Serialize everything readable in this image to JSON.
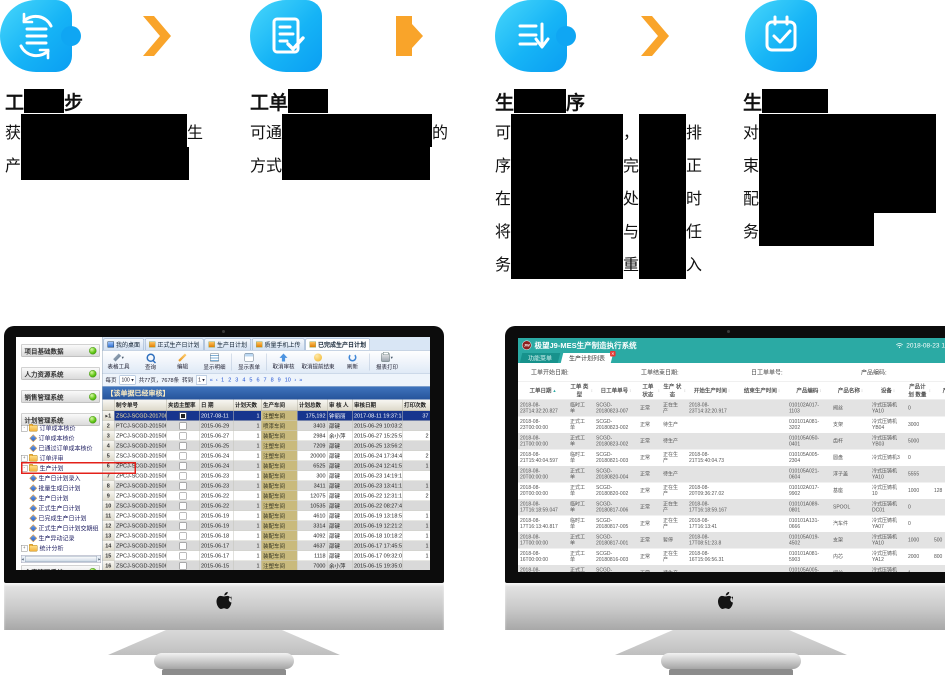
{
  "colors": {
    "badge_cyan_light": "#49d7fb",
    "badge_cyan_dark": "#0a9ef2",
    "arrow_orange": "#f9a42a",
    "mes_teal": "#2baaa4",
    "highlight_red": "#e3211a",
    "selected_row_navy": "#17358e",
    "workshop_tan": "#c9ba7d"
  },
  "steps": [
    {
      "icon": "sync-icon",
      "title": [
        {
          "t": "工"
        },
        {
          "g": 40
        },
        {
          "t": "步"
        }
      ],
      "lines": [
        [
          {
            "t": "获"
          },
          {
            "g": 166
          },
          {
            "t": "生"
          }
        ],
        [
          {
            "t": "产"
          },
          {
            "g": 168
          }
        ]
      ]
    },
    {
      "icon": "doc-check-icon",
      "title": [
        {
          "t": "工单"
        },
        {
          "g": 40
        }
      ],
      "lines": [
        [
          {
            "t": "可通"
          },
          {
            "g": 150
          },
          {
            "t": "的"
          }
        ],
        [
          {
            "t": "方式"
          },
          {
            "g": 148
          }
        ]
      ]
    },
    {
      "icon": "list-down-icon",
      "title": [
        {
          "t": "生"
        },
        {
          "g": 52
        },
        {
          "t": "序"
        }
      ],
      "lines": [
        [
          {
            "t": "可"
          },
          {
            "g": 112
          },
          {
            "t": "，"
          },
          {
            "g": 47
          },
          {
            "t": "排"
          }
        ],
        [
          {
            "t": "序"
          },
          {
            "g": 112
          },
          {
            "t": "完"
          },
          {
            "g": 47
          },
          {
            "t": "正"
          }
        ],
        [
          {
            "t": "在"
          },
          {
            "g": 112
          },
          {
            "t": "处"
          },
          {
            "g": 47
          },
          {
            "t": "时"
          }
        ],
        [
          {
            "t": "将"
          },
          {
            "g": 112
          },
          {
            "t": "与"
          },
          {
            "g": 47
          },
          {
            "t": "任"
          }
        ],
        [
          {
            "t": "务"
          },
          {
            "g": 112
          },
          {
            "t": "重"
          },
          {
            "g": 47
          },
          {
            "t": "入"
          }
        ]
      ]
    },
    {
      "icon": "calendar-check-icon",
      "title": [
        {
          "t": "生"
        },
        {
          "g": 66
        }
      ],
      "lines": [
        [
          {
            "t": "对"
          },
          {
            "g": 177
          }
        ],
        [
          {
            "t": "束"
          },
          {
            "g": 177
          }
        ],
        [
          {
            "t": "配"
          },
          {
            "g": 177
          }
        ],
        [
          {
            "t": "务"
          },
          {
            "g": 115
          }
        ]
      ]
    }
  ],
  "left_monitor": {
    "sidebar": {
      "panels": [
        "项目基础数据",
        "人力资源系统",
        "销售管理系统",
        "计划管理系统"
      ],
      "bottom_panel": "仓库管理系统",
      "tree": [
        {
          "label": "订单成本核价",
          "type": "folder",
          "exp": "-"
        },
        {
          "label": "订单成本核价",
          "type": "leaf"
        },
        {
          "label": "已通过订单成本核价",
          "type": "leaf"
        },
        {
          "label": "订单评审",
          "type": "folder",
          "exp": "+"
        },
        {
          "label": "生产计划",
          "type": "folder",
          "exp": "-",
          "highlight": true
        },
        {
          "label": "生产日计划录入",
          "type": "leaf"
        },
        {
          "label": "批量生成日计划",
          "type": "leaf"
        },
        {
          "label": "生产日计划",
          "type": "leaf"
        },
        {
          "label": "正式生产日计划",
          "type": "leaf"
        },
        {
          "label": "已完成生产日计划",
          "type": "leaf"
        },
        {
          "label": "正式生产日计划交期组",
          "type": "leaf"
        },
        {
          "label": "生产异动记录",
          "type": "leaf"
        },
        {
          "label": "统计分析",
          "type": "folder",
          "exp": "+"
        }
      ]
    },
    "tabs": [
      {
        "label": "我的桌面",
        "icon": "desktop-icon",
        "active": false
      },
      {
        "label": "正式生产日计划",
        "icon": "plan-icon",
        "active": false
      },
      {
        "label": "生产日计划",
        "icon": "plan-icon",
        "active": false
      },
      {
        "label": "质量手机上传",
        "icon": "plan-icon",
        "active": false
      },
      {
        "label": "已完成生产日计划",
        "icon": "plan-icon",
        "active": true
      }
    ],
    "toolbar": [
      {
        "label": "表格工具",
        "icon": "wrench-icon",
        "dd": true
      },
      {
        "label": "查询",
        "icon": "search-icon"
      },
      {
        "label": "编辑",
        "icon": "edit-icon"
      },
      {
        "label": "显示明细",
        "icon": "detail-grid-icon",
        "sep": true
      },
      {
        "label": "显示表单",
        "icon": "form-icon",
        "sep": true
      },
      {
        "label": "取消审核",
        "icon": "cancel-audit-icon"
      },
      {
        "label": "取消提前结束",
        "icon": "cancel-finish-icon"
      },
      {
        "label": "刷新",
        "icon": "refresh-icon",
        "sep": true
      },
      {
        "label": "报表打印",
        "icon": "printer-icon",
        "dd": true
      }
    ],
    "pager": {
      "per_label": "每页",
      "per": "100",
      "total": "共77页，7678条",
      "goto_label": "转到",
      "goto": "1",
      "first": "«",
      "prev": "‹",
      "next": "›",
      "last": "»",
      "pages": [
        "1",
        "2",
        "3",
        "4",
        "5",
        "6",
        "7",
        "8",
        "9",
        "10"
      ]
    },
    "section_title": "【该单据已经审核】",
    "columns": [
      "",
      "制令单号",
      "夹齿主塑率",
      "日  期",
      "计划天数",
      "生产车间",
      "计划总数",
      "审 核 人",
      "审核日期",
      "打印次数",
      "最"
    ],
    "rows": [
      {
        "no": "▸1",
        "order": "ZSCJ-SCGD-2017081101",
        "chk": true,
        "date": "2017-08-11",
        "days": "1",
        "shop": "注塑车间",
        "qty": "175,192",
        "aud": "钟丽丽",
        "adate": "2017-08-11 19:37:14",
        "prn": "37",
        "ext": "201"
      },
      {
        "no": "2",
        "order": "PTCJ-SCGD-2015062902",
        "chk": false,
        "date": "2015-06-29",
        "days": "1",
        "shop": "喷漆车间",
        "qty": "3403",
        "aud": "邵键",
        "adate": "2015-06-29 10:03:23",
        "prn": "",
        "ext": ""
      },
      {
        "no": "3",
        "order": "ZPCJ-SCGD-2015062701",
        "chk": false,
        "date": "2015-06-27",
        "days": "1",
        "shop": "装配车间",
        "qty": "2984",
        "aud": "余小萍",
        "adate": "2015-06-27 15:25:56",
        "prn": "2",
        "ext": "201"
      },
      {
        "no": "4",
        "order": "ZSCJ-SCGD-2015062501",
        "chk": false,
        "date": "2015-06-25",
        "days": "1",
        "shop": "注塑车间",
        "qty": "7209",
        "aud": "邵键",
        "adate": "2015-06-25 13:56:20",
        "prn": "",
        "ext": ""
      },
      {
        "no": "5",
        "order": "ZSCJ-SCGD-2015062402",
        "chk": false,
        "date": "2015-06-24",
        "days": "1",
        "shop": "注塑车间",
        "qty": "20000",
        "aud": "邵键",
        "adate": "2015-06-24 17:34:49",
        "prn": "2",
        "ext": "201"
      },
      {
        "no": "6",
        "order": "ZPCJ-SCGD-2015062401",
        "chk": false,
        "date": "2015-06-24",
        "days": "1",
        "shop": "装配车间",
        "qty": "6525",
        "aud": "邵键",
        "adate": "2015-06-24 12:41:59",
        "prn": "1",
        "ext": "201"
      },
      {
        "no": "7",
        "order": "ZPCJ-SCGD-2015062303",
        "chk": false,
        "date": "2015-06-23",
        "days": "1",
        "shop": "装配车间",
        "qty": "300",
        "aud": "邵键",
        "adate": "2015-06-23 14:19:10",
        "prn": "",
        "ext": ""
      },
      {
        "no": "8",
        "order": "ZPCJ-SCGD-2015062302",
        "chk": false,
        "date": "2015-06-23",
        "days": "1",
        "shop": "装配车间",
        "qty": "3411",
        "aud": "邵键",
        "adate": "2015-06-23 13:41:13",
        "prn": "1",
        "ext": "201"
      },
      {
        "no": "9",
        "order": "ZPCJ-SCGD-2015062201",
        "chk": false,
        "date": "2015-06-22",
        "days": "1",
        "shop": "装配车间",
        "qty": "12075",
        "aud": "邵键",
        "adate": "2015-06-22 12:31:15",
        "prn": "2",
        "ext": "201"
      },
      {
        "no": "10",
        "order": "ZSCJ-SCGD-2015062201",
        "chk": false,
        "date": "2015-06-22",
        "days": "1",
        "shop": "注塑车间",
        "qty": "10535",
        "aud": "邵键",
        "adate": "2015-06-22 08:27:40",
        "prn": "",
        "ext": ""
      },
      {
        "no": "11",
        "order": "ZPCJ-SCGD-2015061902",
        "chk": false,
        "date": "2015-06-19",
        "days": "1",
        "shop": "装配车间",
        "qty": "4610",
        "aud": "邵键",
        "adate": "2015-06-19 13:18:59",
        "prn": "1",
        "ext": "201"
      },
      {
        "no": "12",
        "order": "ZPCJ-SCGD-2015061901",
        "chk": false,
        "date": "2015-06-19",
        "days": "1",
        "shop": "装配车间",
        "qty": "3314",
        "aud": "邵键",
        "adate": "2015-06-19 12:21:25",
        "prn": "1",
        "ext": "201"
      },
      {
        "no": "13",
        "order": "ZPCJ-SCGD-2015061801",
        "chk": false,
        "date": "2015-06-18",
        "days": "1",
        "shop": "装配车间",
        "qty": "4092",
        "aud": "邵键",
        "adate": "2015-06-18 10:18:21",
        "prn": "1",
        "ext": "201"
      },
      {
        "no": "14",
        "order": "ZPCJ-SCGD-2015061703",
        "chk": false,
        "date": "2015-06-17",
        "days": "1",
        "shop": "装配车间",
        "qty": "4637",
        "aud": "邵键",
        "adate": "2015-06-17 17:45:50",
        "prn": "1",
        "ext": "201"
      },
      {
        "no": "15",
        "order": "ZPCJ-SCGD-2015061701",
        "chk": false,
        "date": "2015-06-17",
        "days": "1",
        "shop": "装配车间",
        "qty": "1118",
        "aud": "邵键",
        "adate": "2015-06-17 09:32:00",
        "prn": "1",
        "ext": "201"
      },
      {
        "no": "16",
        "order": "ZSCJ-SCGD-2015061504",
        "chk": false,
        "date": "2015-06-15",
        "days": "1",
        "shop": "注塑车间",
        "qty": "7000",
        "aud": "余小萍",
        "adate": "2015-06-15 19:35:01",
        "prn": "",
        "ext": ""
      },
      {
        "no": "17",
        "order": "ZPCJ-SCGD-2015061503",
        "chk": false,
        "date": "2015-06-15",
        "days": "1",
        "shop": "装配车间",
        "qty": "9362",
        "aud": "余小萍",
        "adate": "2015-06-15 15:33:14",
        "prn": "1",
        "ext": "201"
      }
    ]
  },
  "right_monitor": {
    "logo_text": "JW",
    "title": "极望J9-MES生产制造执行系统",
    "datetime": "2018-08-23 17:4",
    "tabs": {
      "menu": "功能菜单",
      "list": "生产计划列表",
      "close": "✕"
    },
    "filters": [
      "工单开始日期:",
      "工单结束日期:",
      "日工单单号:",
      "产品编码:"
    ],
    "columns": [
      "工单日期",
      "工单\n类型",
      "日工单单号",
      "工单\n状态",
      "生产\n状态",
      "开始生产时间",
      "结束生产时间",
      "产品编码",
      "产品名称",
      "设备",
      "产品计划\n数量",
      "产"
    ],
    "rows": [
      {
        "c": [
          "2018-08-\n23T14:32:20.827",
          "临时工\n单",
          "SCGD-\n20180823-007",
          "正常",
          "正在生\n产",
          "2018-08-\n23T14:32:20.917",
          "",
          "010102A017-\n1103",
          "阀丝",
          "冷式压铸机\nYA10",
          "0",
          ""
        ]
      },
      {
        "c": [
          "2018-08-\n23T00:00:00",
          "正式工\n单",
          "SCGD-\n20180823-002",
          "正常",
          "待生产",
          "",
          "",
          "010101A081-\n3202",
          "支架",
          "冷式压铸机\nYB04",
          "3000",
          ""
        ]
      },
      {
        "c": [
          "2018-08-\n21T00:00:00",
          "正式工\n单",
          "SCGD-\n20180823-002",
          "正常",
          "待生产",
          "",
          "",
          "010105A050-\n0401",
          "齿杆",
          "冷式压铸机\nYB03",
          "5000",
          ""
        ]
      },
      {
        "c": [
          "2018-08-\n21T15:40:04.597",
          "临时工\n单",
          "SCGD-\n20180821-003",
          "正常",
          "正在生\n产",
          "2018-08-\n21T15:40:04.73",
          "",
          "010105A005-\n2304",
          "圆盘",
          "冷式压铸机3",
          "0",
          ""
        ]
      },
      {
        "c": [
          "2018-08-\n20T00:00:00",
          "正式工\n单",
          "SCGD-\n20180820-004",
          "正常",
          "待生产",
          "",
          "",
          "010105A021-\n0604",
          "浮子盖",
          "冷式压铸机\nYA10",
          "5555",
          ""
        ]
      },
      {
        "c": [
          "2018-08-\n20T00:00:00",
          "正式工\n单",
          "SCGD-\n20180820-002",
          "正常",
          "正在生\n产",
          "2018-08-\n20T09:36:27.02",
          "",
          "010102A017-\n9902",
          "基座",
          "冷式压铸机\n10",
          "1000",
          "128"
        ]
      },
      {
        "c": [
          "2018-08-\n17T16:18:59.047",
          "临时工\n单",
          "SCGD-\n20180817-006",
          "正常",
          "正在生\n产",
          "2018-08-\n17T16:18:59.167",
          "",
          "010101A089-\n0801",
          "SPOOL",
          "冷式压铸机\nDC01",
          "0",
          ""
        ]
      },
      {
        "c": [
          "2018-08-\n17T16:13:40.817",
          "临时工\n单",
          "SCGD-\n20180817-005",
          "正常",
          "正在生\n产",
          "2018-08-\n17T16:13:41",
          "",
          "010101A131-\n0666",
          "汽车件",
          "冷式压铸机\nYA07",
          "0",
          ""
        ]
      },
      {
        "c": [
          "2018-08-\n17T00:00:00",
          "正式工\n单",
          "SCGD-\n20180817-001",
          "正常",
          "暂停",
          "2018-08-\n17T08:51:23.8",
          "",
          "010105A019-\n4502",
          "支架",
          "冷式压铸机\nYA10",
          "1000",
          "500"
        ]
      },
      {
        "c": [
          "2018-08-\n16T00:00:00",
          "正式工\n单",
          "SCGD-\n20180816-003",
          "正常",
          "正在生\n产",
          "2018-08-\n16T15:06:56.31",
          "",
          "010101A081-\n5903",
          "内芯",
          "冷式压铸机\nYA12",
          "2000",
          "800"
        ]
      },
      {
        "c": [
          "2018-08-\n21T00:00:00",
          "正式工\n单",
          "SCGD-\n20180821-001",
          "正常",
          "待生产",
          "",
          "",
          "010105A005-\n2301",
          "阀丝",
          "冷式压铸机\nYA07",
          "1",
          ""
        ]
      }
    ]
  }
}
